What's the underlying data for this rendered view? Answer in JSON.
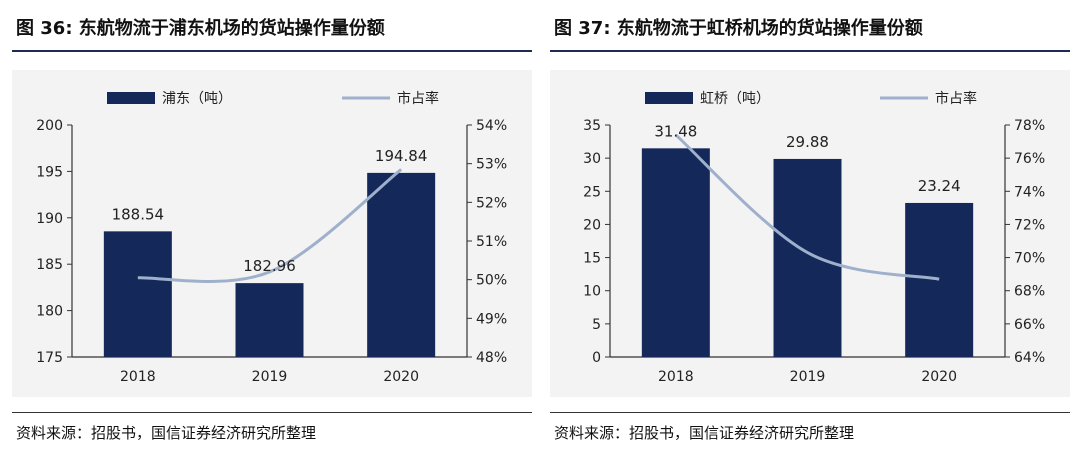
{
  "chart_data": [
    {
      "type": "bar",
      "title": "图 36: 东航物流于浦东机场的货站操作量份额",
      "categories": [
        "2018",
        "2019",
        "2020"
      ],
      "series": [
        {
          "name": "浦东（吨）",
          "type": "bar",
          "axis": "left",
          "values": [
            188.54,
            182.96,
            194.84
          ],
          "value_labels": [
            "188.54",
            "182.96",
            "194.84"
          ],
          "color": "#14285a"
        },
        {
          "name": "市占率",
          "type": "line",
          "axis": "right",
          "values": [
            50.05,
            50.2,
            52.85
          ],
          "color": "#9fb0cc"
        }
      ],
      "ylim": [
        175,
        200
      ],
      "yticks": [
        "175",
        "180",
        "185",
        "190",
        "195",
        "200"
      ],
      "y2lim": [
        48,
        54
      ],
      "y2ticks": [
        "48%",
        "49%",
        "50%",
        "51%",
        "52%",
        "53%",
        "54%"
      ],
      "legend": "top",
      "grid": false,
      "source": "资料来源：招股书，国信证券经济研究所整理"
    },
    {
      "type": "bar",
      "title": "图 37: 东航物流于虹桥机场的货站操作量份额",
      "categories": [
        "2018",
        "2019",
        "2020"
      ],
      "series": [
        {
          "name": "虹桥（吨）",
          "type": "bar",
          "axis": "left",
          "values": [
            31.48,
            29.88,
            23.24
          ],
          "value_labels": [
            "31.48",
            "29.88",
            "23.24"
          ],
          "color": "#14285a"
        },
        {
          "name": "市占率",
          "type": "line",
          "axis": "right",
          "values": [
            77.4,
            70.3,
            68.7
          ],
          "color": "#9fb0cc"
        }
      ],
      "ylim": [
        0,
        35
      ],
      "yticks": [
        "0",
        "5",
        "10",
        "15",
        "20",
        "25",
        "30",
        "35"
      ],
      "y2lim": [
        64,
        78
      ],
      "y2ticks": [
        "64%",
        "66%",
        "68%",
        "70%",
        "72%",
        "74%",
        "76%",
        "78%"
      ],
      "legend": "top",
      "grid": false,
      "source": "资料来源：招股书，国信证券经济研究所整理"
    }
  ]
}
